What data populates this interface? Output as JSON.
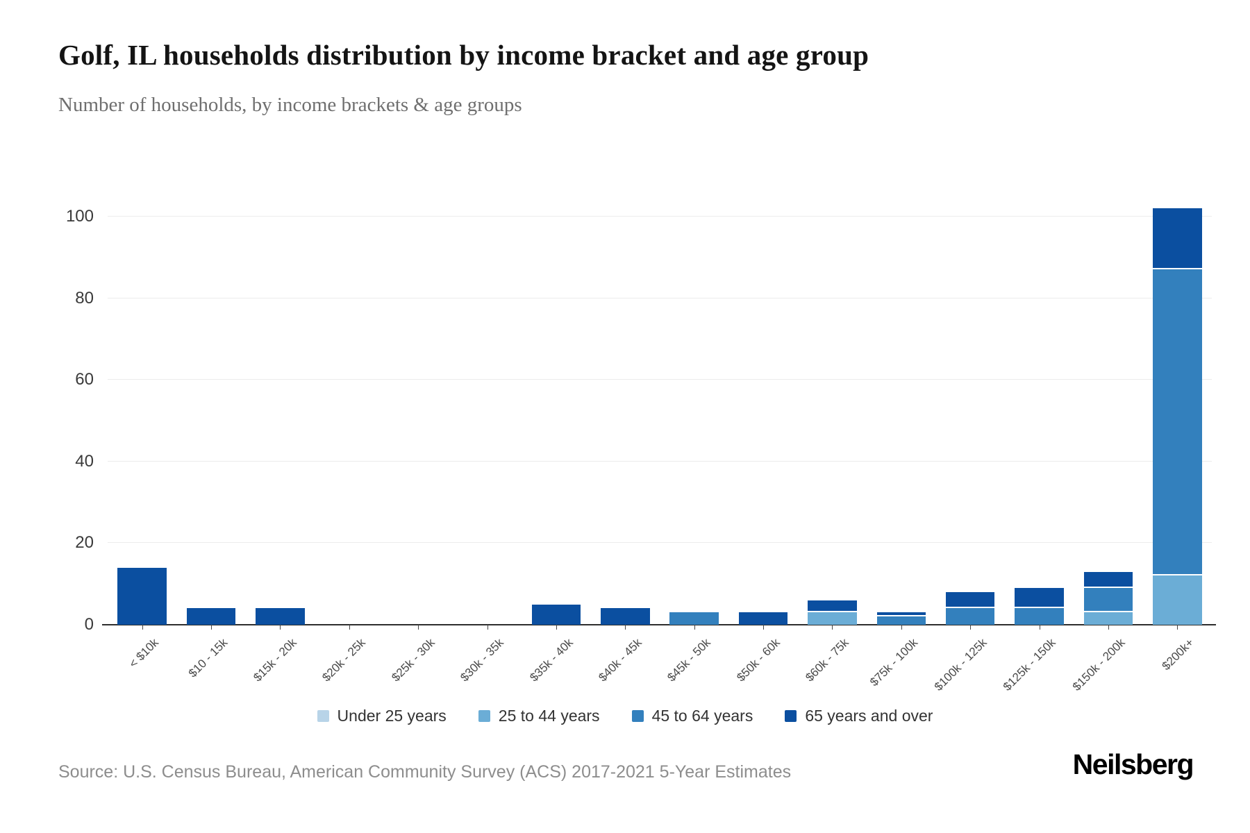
{
  "header": {
    "title": "Golf, IL households distribution by income bracket and age group",
    "subtitle": "Number of households, by income brackets & age groups"
  },
  "footer": {
    "source": "Source: U.S. Census Bureau, American Community Survey (ACS) 2017-2021 5-Year Estimates",
    "logo": "Neilsberg"
  },
  "chart_data": {
    "type": "bar",
    "stacked": true,
    "title": "Golf, IL households distribution by income bracket and age group",
    "xlabel": "",
    "ylabel": "Number of households",
    "ylim": [
      0,
      100
    ],
    "yticks": [
      0,
      20,
      40,
      60,
      80,
      100
    ],
    "grid": true,
    "legend_position": "bottom",
    "categories": [
      "< $10k",
      "$10 - 15k",
      "$15k - 20k",
      "$20k - 25k",
      "$25k - 30k",
      "$30k - 35k",
      "$35k - 40k",
      "$40k - 45k",
      "$45k - 50k",
      "$50k - 60k",
      "$60k - 75k",
      "$75k - 100k",
      "$100k - 125k",
      "$125k - 150k",
      "$150k - 200k",
      "$200k+"
    ],
    "series": [
      {
        "name": "Under 25 years",
        "color": "#b8d4e8",
        "values": [
          0,
          0,
          0,
          0,
          0,
          0,
          0,
          0,
          0,
          0,
          0,
          0,
          0,
          0,
          0,
          0
        ]
      },
      {
        "name": "25 to 44 years",
        "color": "#6badd6",
        "values": [
          0,
          0,
          0,
          0,
          0,
          0,
          0,
          0,
          0,
          0,
          3,
          0,
          0,
          0,
          3,
          12
        ]
      },
      {
        "name": "45 to 64 years",
        "color": "#3380bd",
        "values": [
          0,
          0,
          0,
          0,
          0,
          0,
          0,
          0,
          3,
          0,
          0,
          2,
          4,
          4,
          6,
          75
        ]
      },
      {
        "name": "65 years and over",
        "color": "#0b4fa0",
        "values": [
          14,
          4,
          4,
          0,
          0,
          0,
          5,
          4,
          0,
          3,
          3,
          1,
          4,
          5,
          4,
          15
        ]
      }
    ]
  }
}
